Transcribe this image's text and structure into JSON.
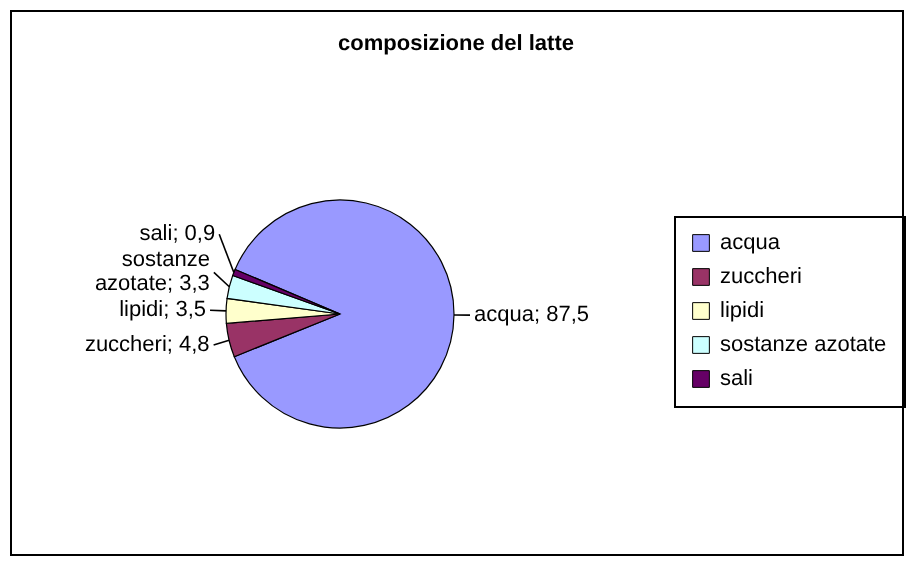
{
  "chart_data": {
    "type": "pie",
    "title": "composizione del latte",
    "categories": [
      "acqua",
      "zuccheri",
      "lipidi",
      "sostanze azotate",
      "sali"
    ],
    "values": [
      87.5,
      4.8,
      3.5,
      3.3,
      0.9
    ],
    "value_labels": [
      "acqua; 87,5",
      "zuccheri; 4,8",
      "lipidi; 3,5",
      "sostanze azotate; 3,3",
      "sali; 0,9"
    ],
    "colors": [
      "#9999ff",
      "#993366",
      "#ffffcc",
      "#ccffff",
      "#660066"
    ],
    "legend": "right"
  }
}
